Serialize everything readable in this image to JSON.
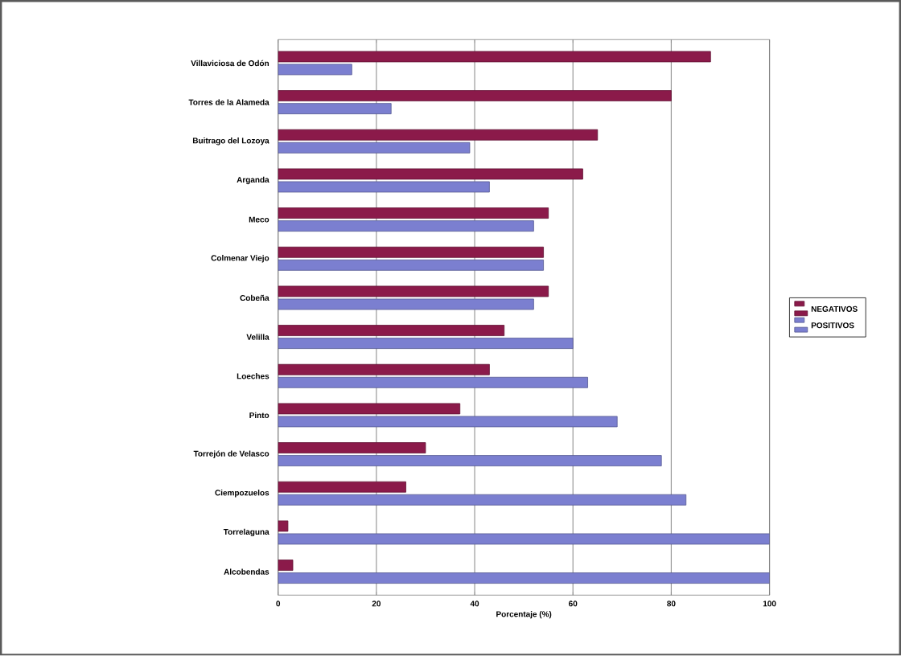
{
  "chart_data": {
    "type": "bar",
    "orientation": "horizontal",
    "xlabel": "Porcentaje (%)",
    "categories": [
      "Villaviciosa de Odón",
      "Torres de la Alameda",
      "Buitrago del Lozoya",
      "Arganda",
      "Meco",
      "Colmenar Viejo",
      "Cobeña",
      "Velilla",
      "Loeches",
      "Pinto",
      "Torrejón de Velasco",
      "Ciempozuelos",
      "Torrelaguna",
      "Alcobendas"
    ],
    "series": [
      {
        "name": "NEGATIVOS",
        "color": "#8b1a4a",
        "values": [
          88,
          80,
          65,
          62,
          55,
          54,
          55,
          46,
          43,
          37,
          30,
          26,
          2,
          3
        ]
      },
      {
        "name": "POSITIVOS",
        "color": "#7b7fd0",
        "values": [
          15,
          23,
          39,
          43,
          52,
          54,
          52,
          60,
          63,
          69,
          78,
          83,
          100,
          100
        ]
      }
    ],
    "xlim": [
      0,
      100
    ],
    "xticks": [
      0,
      20,
      40,
      60,
      80,
      100
    ],
    "grid": "x",
    "legend": "right"
  }
}
